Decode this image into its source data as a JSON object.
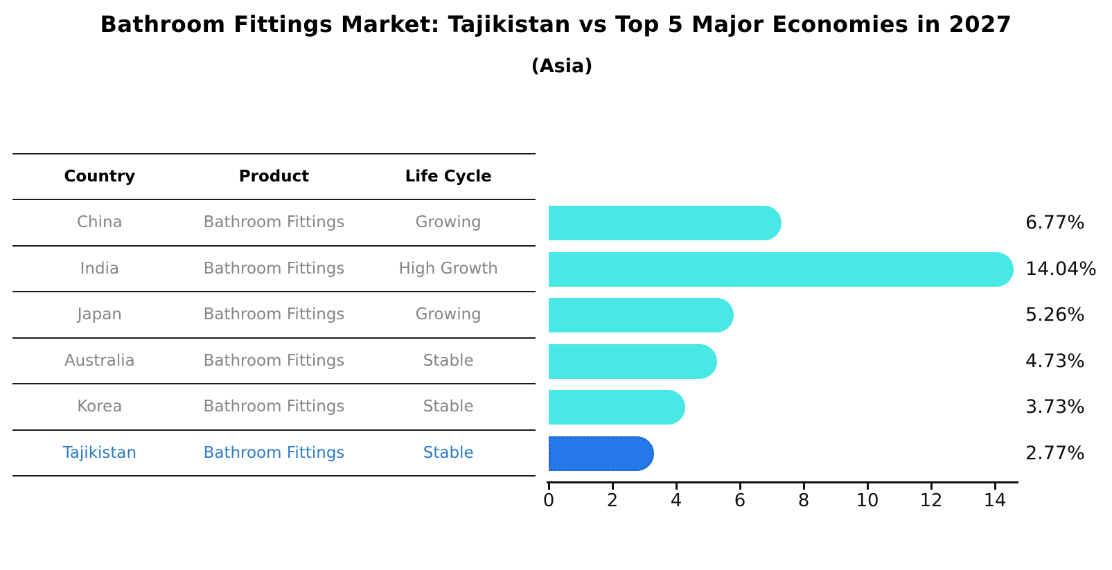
{
  "title": "Bathroom Fittings Market: Tajikistan vs Top 5 Major Economies in 2027",
  "subtitle": "(Asia)",
  "table": {
    "headers": [
      "Country",
      "Product",
      "Life Cycle"
    ],
    "rows": [
      {
        "country": "China",
        "product": "Bathroom Fittings",
        "life_cycle": "Growing",
        "highlight": false
      },
      {
        "country": "India",
        "product": "Bathroom Fittings",
        "life_cycle": "High Growth",
        "highlight": false
      },
      {
        "country": "Japan",
        "product": "Bathroom Fittings",
        "life_cycle": "Growing",
        "highlight": false
      },
      {
        "country": "Australia",
        "product": "Bathroom Fittings",
        "life_cycle": "Stable",
        "highlight": false
      },
      {
        "country": "Korea",
        "product": "Bathroom Fittings",
        "life_cycle": "Stable",
        "highlight": false
      },
      {
        "country": "Tajikistan",
        "product": "Bathroom Fittings",
        "life_cycle": "Stable",
        "highlight": true
      }
    ]
  },
  "chart_data": {
    "type": "bar",
    "orientation": "horizontal",
    "title": "",
    "xlabel": "",
    "ylabel": "",
    "categories": [
      "China",
      "India",
      "Japan",
      "Australia",
      "Korea",
      "Tajikistan"
    ],
    "values": [
      6.77,
      14.04,
      5.26,
      4.73,
      3.73,
      2.77
    ],
    "value_labels": [
      "6.77%",
      "14.04%",
      "5.26%",
      "4.73%",
      "3.73%",
      "2.77%"
    ],
    "xlim": [
      0,
      14.74
    ],
    "xticks": [
      0,
      2,
      4,
      6,
      8,
      10,
      12,
      14
    ],
    "grid": false,
    "legend": "none",
    "highlight_index": 5
  },
  "colors": {
    "bar": "#48e8e4",
    "highlight_bar": "#2478e8",
    "highlight_border": "#1e66d9",
    "highlight_text": "#2b7bc9",
    "body_text": "#858585",
    "axis": "#111111",
    "title_text": "#000000"
  }
}
